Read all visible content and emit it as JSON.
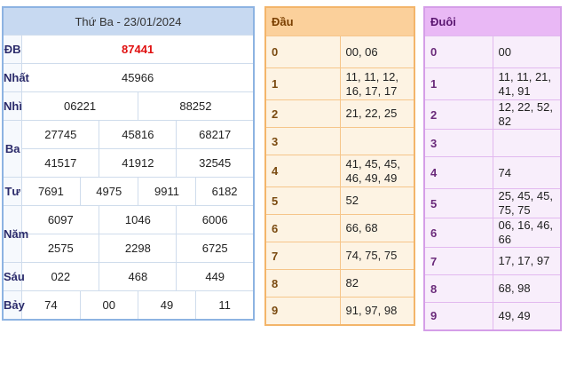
{
  "results": {
    "title": "Thứ Ba - 23/01/2024",
    "rows": [
      {
        "label": "ĐB",
        "values": [
          "87441"
        ]
      },
      {
        "label": "Nhất",
        "values": [
          "45966"
        ]
      },
      {
        "label": "Nhì",
        "values": [
          "06221",
          "88252"
        ]
      },
      {
        "label": "Ba",
        "values": [
          "27745",
          "45816",
          "68217",
          "41517",
          "41912",
          "32545"
        ]
      },
      {
        "label": "Tư",
        "values": [
          "7691",
          "4975",
          "9911",
          "6182"
        ]
      },
      {
        "label": "Năm",
        "values": [
          "6097",
          "1046",
          "6006",
          "2575",
          "2298",
          "6725"
        ]
      },
      {
        "label": "Sáu",
        "values": [
          "022",
          "468",
          "449"
        ]
      },
      {
        "label": "Bảy",
        "values": [
          "74",
          "00",
          "49",
          "11"
        ]
      }
    ]
  },
  "dau": {
    "title": "Đầu",
    "rows": [
      {
        "key": "0",
        "value": "00, 06"
      },
      {
        "key": "1",
        "value": "11, 11, 12, 16, 17, 17"
      },
      {
        "key": "2",
        "value": "21, 22, 25"
      },
      {
        "key": "3",
        "value": ""
      },
      {
        "key": "4",
        "value": "41, 45, 45, 46, 49, 49"
      },
      {
        "key": "5",
        "value": "52"
      },
      {
        "key": "6",
        "value": "66, 68"
      },
      {
        "key": "7",
        "value": "74, 75, 75"
      },
      {
        "key": "8",
        "value": "82"
      },
      {
        "key": "9",
        "value": "91, 97, 98"
      }
    ]
  },
  "duoi": {
    "title": "Đuôi",
    "rows": [
      {
        "key": "0",
        "value": "00"
      },
      {
        "key": "1",
        "value": "11, 11, 21, 41, 91"
      },
      {
        "key": "2",
        "value": "12, 22, 52, 82"
      },
      {
        "key": "3",
        "value": ""
      },
      {
        "key": "4",
        "value": "74"
      },
      {
        "key": "5",
        "value": "25, 45, 45, 75, 75"
      },
      {
        "key": "6",
        "value": "06, 16, 46, 66"
      },
      {
        "key": "7",
        "value": "17, 17, 97"
      },
      {
        "key": "8",
        "value": "68, 98"
      },
      {
        "key": "9",
        "value": "49, 49"
      }
    ]
  }
}
